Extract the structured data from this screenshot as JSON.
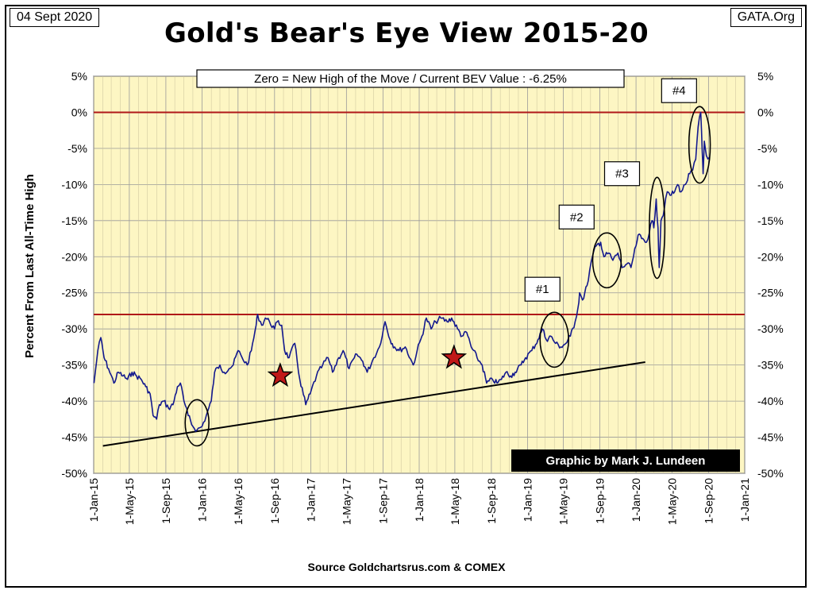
{
  "header": {
    "date": "04 Sept 2020",
    "brand": "GATA.Org",
    "title": "Gold's Bear's Eye View 2015-20"
  },
  "footer": {
    "source": "Source Goldchartsrus.com & COMEX",
    "credit": "Graphic by Mark J. Lundeen"
  },
  "chart_data": {
    "type": "line",
    "title": "Gold's Bear's Eye View 2015-20",
    "ylabel": "Percent  From  Last  All-Time High",
    "xlabel": "",
    "ylim": [
      -50,
      5
    ],
    "y_ticks": [
      5,
      0,
      -5,
      -10,
      -15,
      -20,
      -25,
      -30,
      -35,
      -40,
      -45,
      -50
    ],
    "y_tick_labels": [
      "5%",
      "0%",
      "-5%",
      "-10%",
      "-15%",
      "-20%",
      "-25%",
      "-30%",
      "-35%",
      "-40%",
      "-45%",
      "-50%"
    ],
    "x_range": [
      "2015-01-01",
      "2021-01-01"
    ],
    "x_ticks": [
      "2015-01-01",
      "2015-05-01",
      "2015-09-01",
      "2016-01-01",
      "2016-05-01",
      "2016-09-01",
      "2017-01-01",
      "2017-05-01",
      "2017-09-01",
      "2018-01-01",
      "2018-05-01",
      "2018-09-01",
      "2019-01-01",
      "2019-05-01",
      "2019-09-01",
      "2020-01-01",
      "2020-05-01",
      "2020-09-01",
      "2021-01-01"
    ],
    "x_tick_labels": [
      "1-Jan-15",
      "1-May-15",
      "1-Sep-15",
      "1-Jan-16",
      "1-May-16",
      "1-Sep-16",
      "1-Jan-17",
      "1-May-17",
      "1-Sep-17",
      "1-Jan-18",
      "1-May-18",
      "1-Sep-18",
      "1-Jan-19",
      "1-May-19",
      "1-Sep-19",
      "1-Jan-20",
      "1-May-20",
      "1-Sep-20",
      "1-Jan-21"
    ],
    "grid": true,
    "y_axis_both_sides": true,
    "background": "#fdf6c3",
    "line_color": "#13198e",
    "series": [
      {
        "points": [
          [
            "2015-01-02",
            -37.5
          ],
          [
            "2015-01-15",
            -33
          ],
          [
            "2015-01-25",
            -31.2
          ],
          [
            "2015-02-05",
            -34
          ],
          [
            "2015-02-20",
            -35.5
          ],
          [
            "2015-03-10",
            -37.5
          ],
          [
            "2015-03-25",
            -36
          ],
          [
            "2015-04-10",
            -36.5
          ],
          [
            "2015-04-25",
            -37
          ],
          [
            "2015-05-10",
            -36
          ],
          [
            "2015-05-25",
            -36.5
          ],
          [
            "2015-06-10",
            -37
          ],
          [
            "2015-06-25",
            -38
          ],
          [
            "2015-07-10",
            -39
          ],
          [
            "2015-07-20",
            -42
          ],
          [
            "2015-08-01",
            -42.5
          ],
          [
            "2015-08-10",
            -40.5
          ],
          [
            "2015-08-25",
            -40
          ],
          [
            "2015-09-10",
            -41
          ],
          [
            "2015-09-25",
            -40.5
          ],
          [
            "2015-10-10",
            -38
          ],
          [
            "2015-10-20",
            -37.5
          ],
          [
            "2015-11-01",
            -40
          ],
          [
            "2015-11-15",
            -42
          ],
          [
            "2015-12-01",
            -43.5
          ],
          [
            "2015-12-15",
            -44
          ],
          [
            "2016-01-01",
            -43.5
          ],
          [
            "2016-01-15",
            -42
          ],
          [
            "2016-02-01",
            -40
          ],
          [
            "2016-02-12",
            -36
          ],
          [
            "2016-03-01",
            -35
          ],
          [
            "2016-03-15",
            -36
          ],
          [
            "2016-04-01",
            -35.5
          ],
          [
            "2016-04-15",
            -35
          ],
          [
            "2016-05-01",
            -33
          ],
          [
            "2016-05-15",
            -34
          ],
          [
            "2016-06-01",
            -35
          ],
          [
            "2016-06-15",
            -33
          ],
          [
            "2016-07-01",
            -29.5
          ],
          [
            "2016-07-06",
            -28
          ],
          [
            "2016-07-20",
            -29.5
          ],
          [
            "2016-08-01",
            -28.5
          ],
          [
            "2016-08-15",
            -29
          ],
          [
            "2016-09-01",
            -30
          ],
          [
            "2016-09-10",
            -29
          ],
          [
            "2016-09-25",
            -29.5
          ],
          [
            "2016-10-05",
            -33
          ],
          [
            "2016-10-20",
            -34
          ],
          [
            "2016-11-08",
            -32
          ],
          [
            "2016-11-25",
            -37
          ],
          [
            "2016-12-15",
            -40.5
          ],
          [
            "2016-12-30",
            -39
          ],
          [
            "2017-01-20",
            -36.5
          ],
          [
            "2017-02-10",
            -35
          ],
          [
            "2017-02-28",
            -34
          ],
          [
            "2017-03-15",
            -36
          ],
          [
            "2017-04-05",
            -34
          ],
          [
            "2017-04-20",
            -33
          ],
          [
            "2017-05-10",
            -35.5
          ],
          [
            "2017-06-05",
            -33.5
          ],
          [
            "2017-06-25",
            -34.5
          ],
          [
            "2017-07-10",
            -36
          ],
          [
            "2017-08-01",
            -34
          ],
          [
            "2017-08-20",
            -32.5
          ],
          [
            "2017-09-08",
            -29
          ],
          [
            "2017-09-25",
            -31.5
          ],
          [
            "2017-10-10",
            -32.5
          ],
          [
            "2017-10-25",
            -33
          ],
          [
            "2017-11-15",
            -32.5
          ],
          [
            "2017-12-12",
            -35
          ],
          [
            "2017-12-25",
            -33
          ],
          [
            "2018-01-10",
            -31
          ],
          [
            "2018-01-25",
            -28.5
          ],
          [
            "2018-02-10",
            -30
          ],
          [
            "2018-02-25",
            -29
          ],
          [
            "2018-03-15",
            -28.5
          ],
          [
            "2018-04-05",
            -29
          ],
          [
            "2018-04-20",
            -28.5
          ],
          [
            "2018-05-10",
            -30
          ],
          [
            "2018-05-25",
            -31
          ],
          [
            "2018-06-10",
            -30.5
          ],
          [
            "2018-06-25",
            -32.5
          ],
          [
            "2018-07-15",
            -34
          ],
          [
            "2018-08-01",
            -35
          ],
          [
            "2018-08-16",
            -37.5
          ],
          [
            "2018-09-05",
            -37
          ],
          [
            "2018-09-20",
            -37.5
          ],
          [
            "2018-10-05",
            -37
          ],
          [
            "2018-10-20",
            -36
          ],
          [
            "2018-11-05",
            -36.5
          ],
          [
            "2018-11-20",
            -36
          ],
          [
            "2018-12-10",
            -35
          ],
          [
            "2018-12-25",
            -34
          ],
          [
            "2019-01-15",
            -33
          ],
          [
            "2019-02-05",
            -31.5
          ],
          [
            "2019-02-20",
            -30
          ],
          [
            "2019-03-05",
            -31.5
          ],
          [
            "2019-03-20",
            -31
          ],
          [
            "2019-04-05",
            -32
          ],
          [
            "2019-04-23",
            -32.5
          ],
          [
            "2019-05-10",
            -32
          ],
          [
            "2019-05-25",
            -31
          ],
          [
            "2019-06-10",
            -29
          ],
          [
            "2019-06-20",
            -27
          ],
          [
            "2019-06-25",
            -25
          ],
          [
            "2019-07-05",
            -26
          ],
          [
            "2019-07-20",
            -24
          ],
          [
            "2019-08-07",
            -20
          ],
          [
            "2019-08-20",
            -18.5
          ],
          [
            "2019-09-04",
            -18
          ],
          [
            "2019-09-15",
            -20
          ],
          [
            "2019-10-01",
            -19.5
          ],
          [
            "2019-10-15",
            -20.5
          ],
          [
            "2019-11-01",
            -19.5
          ],
          [
            "2019-11-15",
            -21.5
          ],
          [
            "2019-12-01",
            -21
          ],
          [
            "2019-12-15",
            -21.5
          ],
          [
            "2020-01-01",
            -18.5
          ],
          [
            "2020-01-08",
            -17
          ],
          [
            "2020-01-20",
            -17.5
          ],
          [
            "2020-02-05",
            -18
          ],
          [
            "2020-02-24",
            -15
          ],
          [
            "2020-03-01",
            -16
          ],
          [
            "2020-03-09",
            -12
          ],
          [
            "2020-03-15",
            -16
          ],
          [
            "2020-03-19",
            -21.5
          ],
          [
            "2020-03-25",
            -15
          ],
          [
            "2020-04-05",
            -13.5
          ],
          [
            "2020-04-15",
            -11
          ],
          [
            "2020-04-25",
            -11.5
          ],
          [
            "2020-05-10",
            -11
          ],
          [
            "2020-05-20",
            -10
          ],
          [
            "2020-06-01",
            -11
          ],
          [
            "2020-06-15",
            -10
          ],
          [
            "2020-06-30",
            -8.5
          ],
          [
            "2020-07-10",
            -8
          ],
          [
            "2020-07-20",
            -6.5
          ],
          [
            "2020-07-28",
            -2
          ],
          [
            "2020-08-06",
            0
          ],
          [
            "2020-08-11",
            -5.5
          ],
          [
            "2020-08-14",
            -8.5
          ],
          [
            "2020-08-18",
            -4
          ],
          [
            "2020-08-25",
            -6
          ],
          [
            "2020-09-04",
            -6.25
          ]
        ]
      }
    ],
    "reference_lines": [
      {
        "y": 0,
        "color": "#b01818"
      },
      {
        "y": -28,
        "color": "#b01818"
      }
    ],
    "trend_line": {
      "from": [
        "2015-02-01",
        -46.2
      ],
      "to": [
        "2020-02-01",
        -34.6
      ],
      "color": "#000000"
    },
    "info_box": "Zero = New High of the Move / Current  BEV Value : -6.25%",
    "labels": [
      {
        "text": "#1",
        "x": "2019-02-20",
        "y": -24.5
      },
      {
        "text": "#2",
        "x": "2019-06-15",
        "y": -14.5
      },
      {
        "text": "#3",
        "x": "2019-11-15",
        "y": -8.5
      },
      {
        "text": "#4",
        "x": "2020-05-25",
        "y": 3
      }
    ],
    "circles": [
      {
        "x": "2015-12-15",
        "y": -43,
        "rx_days": 40,
        "ry": 3.2
      },
      {
        "x": "2019-04-01",
        "y": -31.5,
        "rx_days": 48,
        "ry": 3.8
      },
      {
        "x": "2019-09-25",
        "y": -20.5,
        "rx_days": 48,
        "ry": 3.8
      },
      {
        "x": "2020-03-12",
        "y": -16,
        "rx_days": 26,
        "ry": 7
      },
      {
        "x": "2020-08-02",
        "y": -4.5,
        "rx_days": 36,
        "ry": 5.3
      }
    ],
    "stars": [
      {
        "x": "2016-09-20",
        "y": -36.5,
        "color": "#c01818"
      },
      {
        "x": "2018-04-28",
        "y": -34,
        "color": "#c01818"
      }
    ]
  }
}
